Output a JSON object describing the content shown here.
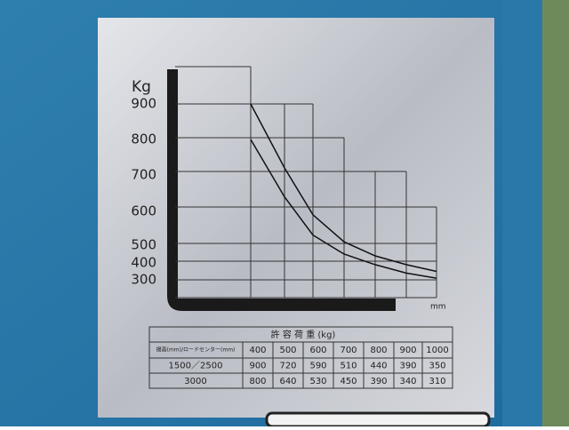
{
  "chart": {
    "y_unit": "Kg",
    "x_unit": "mm",
    "yticks": [
      900,
      800,
      700,
      600,
      500,
      400,
      300
    ]
  },
  "table": {
    "title": "許 容 荷 重 (kg)",
    "corner": "揚高(mm)/ロードセンター(mm)",
    "centers": [
      400,
      500,
      600,
      700,
      800,
      900,
      1000
    ],
    "rows": [
      {
        "label": "1500／2500",
        "values": [
          900,
          720,
          590,
          510,
          440,
          390,
          350
        ]
      },
      {
        "label": "3000",
        "values": [
          800,
          640,
          530,
          450,
          390,
          340,
          310
        ]
      }
    ]
  }
}
